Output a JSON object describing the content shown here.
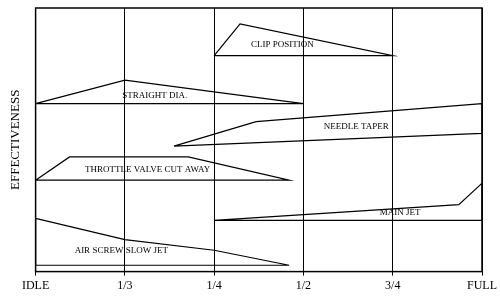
{
  "chart_data": {
    "type": "polygon",
    "y_label": "EFFECTIVENESS",
    "xlim": [
      0,
      5
    ],
    "xticks": [
      {
        "value": 0,
        "label": "IDLE"
      },
      {
        "value": 1,
        "label": "1/3"
      },
      {
        "value": 2,
        "label": "1/4"
      },
      {
        "value": 3,
        "label": "1/2"
      },
      {
        "value": 4,
        "label": "3/4"
      },
      {
        "value": 5,
        "label": "FULL"
      }
    ],
    "ylim": [
      0,
      10
    ],
    "yticks": [],
    "tick_labels": "x",
    "grid": true,
    "series": [
      {
        "name": "CLIP POSITION",
        "color": "#000000",
        "x": [
          2,
          2.29,
          4
        ],
        "values": [
          8.19,
          9.4,
          8.19
        ]
      },
      {
        "name": "STRAIGHT DIA.",
        "color": "#000000",
        "x": [
          0,
          1,
          3
        ],
        "values": [
          6.37,
          7.26,
          6.37
        ]
      },
      {
        "name": "NEEDLE TAPER",
        "color": "#000000",
        "x": [
          1.55,
          2.47,
          5,
          5
        ],
        "values": [
          4.76,
          5.69,
          6.37,
          5.24
        ]
      },
      {
        "name": "THROTTLE VALVE CUT AWAY",
        "color": "#000000",
        "x": [
          0,
          0.38,
          1.71,
          2.84
        ],
        "values": [
          3.47,
          4.35,
          4.35,
          3.47
        ]
      },
      {
        "name": "MAIN JET",
        "color": "#000000",
        "x": [
          2,
          4.74,
          5,
          5
        ],
        "values": [
          1.94,
          2.54,
          3.35,
          1.94
        ]
      },
      {
        "name": "AIR SCREW SLOW JET",
        "color": "#000000",
        "x": [
          0,
          1,
          2,
          2.84,
          0
        ],
        "values": [
          2.02,
          1.21,
          0.81,
          0.24,
          0.24
        ]
      }
    ]
  }
}
